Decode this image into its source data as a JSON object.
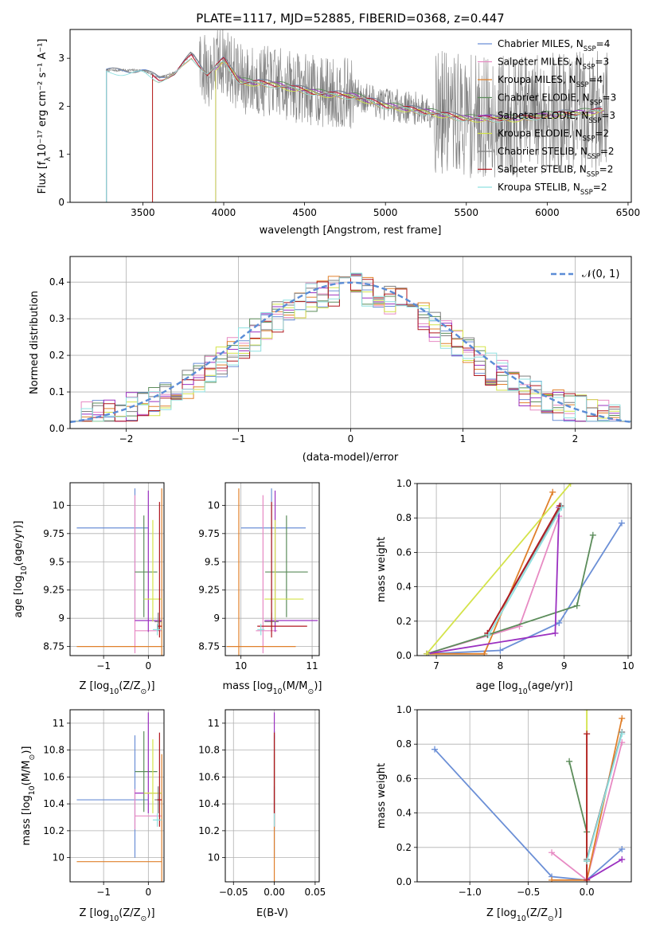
{
  "figure": {
    "title": "PLATE=1117, MJD=52885, FIBERID=0368, z=0.447"
  },
  "models": [
    {
      "name": "Chabrier MILES, N",
      "sub": "SSP",
      "tail": "=4",
      "color": "#6b8fd6"
    },
    {
      "name": "Salpeter MILES, N",
      "sub": "SSP",
      "tail": "=3",
      "color": "#e78ac3"
    },
    {
      "name": "Kroupa MILES, N",
      "sub": "SSP",
      "tail": "=4",
      "color": "#e0802b"
    },
    {
      "name": "Chabrier ELODIE, N",
      "sub": "SSP",
      "tail": "=3",
      "color": "#5b8c5a"
    },
    {
      "name": "Salpeter ELODIE, N",
      "sub": "SSP",
      "tail": "=3",
      "color": "#9b30c0"
    },
    {
      "name": "Kroupa ELODIE, N",
      "sub": "SSP",
      "tail": "=2",
      "color": "#d4e34a"
    },
    {
      "name": "Chabrier STELIB, N",
      "sub": "SSP",
      "tail": "=2",
      "color": "#7f7f7f"
    },
    {
      "name": "Salpeter STELIB, N",
      "sub": "SSP",
      "tail": "=2",
      "color": "#b0171f"
    },
    {
      "name": "Kroupa STELIB, N",
      "sub": "SSP",
      "tail": "=2",
      "color": "#8fe0e0"
    }
  ],
  "chart_data": [
    {
      "id": "spectrum",
      "type": "line",
      "xlabel": "wavelength [Angstrom, rest frame]",
      "ylabel_pre": "Flux [f",
      "ylabel_sub": "λ",
      "ylabel_post": "10⁻¹⁷ erg cm⁻² s⁻¹ A⁻¹]",
      "xlim": [
        3050,
        6520
      ],
      "ylim": [
        0,
        3.6
      ],
      "xticks": [
        3500,
        4000,
        4500,
        5000,
        5500,
        6000,
        6500
      ],
      "yticks": [
        0,
        1,
        2,
        3
      ],
      "legend_position": "top-right",
      "model_starts": [
        3275,
        3560,
        3560,
        3950,
        3950,
        3950,
        3275,
        3560,
        3275
      ],
      "continuum": [
        [
          3300,
          2.75
        ],
        [
          3500,
          2.75
        ],
        [
          3600,
          2.6
        ],
        [
          3700,
          2.7
        ],
        [
          3800,
          3.1
        ],
        [
          3900,
          2.7
        ],
        [
          4000,
          3.0
        ],
        [
          4100,
          2.55
        ],
        [
          4300,
          2.5
        ],
        [
          4600,
          2.3
        ],
        [
          4800,
          2.25
        ],
        [
          5000,
          2.05
        ],
        [
          5200,
          1.95
        ],
        [
          5500,
          1.78
        ],
        [
          5800,
          1.78
        ],
        [
          6000,
          1.85
        ],
        [
          6200,
          1.9
        ],
        [
          6350,
          1.95
        ]
      ]
    },
    {
      "id": "residuals",
      "type": "histogram",
      "xlabel": "(data-model)/error",
      "ylabel": "Normed distribution",
      "xlim": [
        -2.5,
        2.5
      ],
      "ylim": [
        0,
        0.47
      ],
      "xticks": [
        -2,
        -1,
        0,
        1,
        2
      ],
      "yticks": [
        0.0,
        0.1,
        0.2,
        0.3,
        0.4
      ],
      "reference": "𝒩(0, 1)",
      "bin_width": 0.1,
      "legend_position": "top-right"
    },
    {
      "id": "age-vs-Z",
      "type": "errorbar",
      "xlabel_pre": "Z [log",
      "xlabel_sub": "10",
      "xlabel_post": "(Z/Z",
      "xlabel_sub2": "⊙",
      "xlabel_end": ")]",
      "ylabel_pre": "age  [log",
      "ylabel_sub": "10",
      "ylabel_post": "(age/yr)]",
      "xlim": [
        -1.75,
        0.35
      ],
      "ylim": [
        8.67,
        10.2
      ],
      "xticks": [
        -1,
        0
      ],
      "yticks": [
        8.75,
        9.0,
        9.25,
        9.5,
        9.75,
        10.0
      ],
      "points": [
        {
          "x": -0.3,
          "xe": [
            1.3,
            0.3
          ],
          "y": 9.8,
          "ye": [
            0.8,
            0.35
          ]
        },
        {
          "x": -0.3,
          "xe": [
            0.0,
            0.6
          ],
          "y": 8.89,
          "ye": [
            0.2,
            1.2
          ]
        },
        {
          "x": 0.3,
          "xe": [
            1.9,
            0.0
          ],
          "y": 8.75,
          "ye": [
            0.1,
            1.4
          ]
        },
        {
          "x": -0.1,
          "xe": [
            0.2,
            0.3
          ],
          "y": 9.41,
          "ye": [
            0.4,
            0.5
          ]
        },
        {
          "x": 0.0,
          "xe": [
            0.3,
            0.3
          ],
          "y": 8.98,
          "ye": [
            0.1,
            1.15
          ]
        },
        {
          "x": 0.1,
          "xe": [
            0.2,
            0.2
          ],
          "y": 9.17,
          "ye": [
            0.2,
            0.7
          ]
        },
        {
          "x": 0.22,
          "xe": [
            0.08,
            0.08
          ],
          "y": 8.97,
          "ye": [
            0.08,
            0.08
          ]
        },
        {
          "x": 0.25,
          "xe": [
            0.05,
            0.05
          ],
          "y": 8.93,
          "ye": [
            0.1,
            1.1
          ]
        },
        {
          "x": 0.2,
          "xe": [
            0.1,
            0.1
          ],
          "y": 8.9,
          "ye": [
            0.05,
            0.05
          ]
        }
      ]
    },
    {
      "id": "age-vs-mass",
      "type": "errorbar",
      "xlabel_pre": "mass [log",
      "xlabel_sub": "10",
      "xlabel_post": "(M/M",
      "xlabel_sub2": "⊙",
      "xlabel_end": ")]",
      "xlim": [
        9.78,
        11.1
      ],
      "ylim": [
        8.67,
        10.2
      ],
      "xticks": [
        10,
        11
      ],
      "yticks": [
        8.75,
        9.0,
        9.25,
        9.5,
        9.75,
        10.0
      ],
      "points": [
        {
          "x": 10.43,
          "xe": [
            0.43,
            0.48
          ],
          "y": 9.8,
          "ye": [
            0.8,
            0.35
          ]
        },
        {
          "x": 10.31,
          "xe": [
            0.1,
            0.2
          ],
          "y": 8.89,
          "ye": [
            0.2,
            1.2
          ]
        },
        {
          "x": 9.97,
          "xe": [
            0.17,
            0.8
          ],
          "y": 8.75,
          "ye": [
            0.1,
            1.4
          ]
        },
        {
          "x": 10.64,
          "xe": [
            0.3,
            0.3
          ],
          "y": 9.41,
          "ye": [
            0.4,
            0.5
          ]
        },
        {
          "x": 10.48,
          "xe": [
            0.15,
            0.6
          ],
          "y": 8.98,
          "ye": [
            0.1,
            1.15
          ]
        },
        {
          "x": 10.48,
          "xe": [
            0.15,
            0.4
          ],
          "y": 9.17,
          "ye": [
            0.2,
            0.7
          ]
        },
        {
          "x": 10.43,
          "xe": [
            0.1,
            0.1
          ],
          "y": 8.97,
          "ye": [
            0.08,
            0.08
          ]
        },
        {
          "x": 10.43,
          "xe": [
            0.2,
            0.5
          ],
          "y": 8.93,
          "ye": [
            0.1,
            1.1
          ]
        },
        {
          "x": 10.28,
          "xe": [
            0.05,
            0.05
          ],
          "y": 8.9,
          "ye": [
            0.05,
            0.05
          ]
        }
      ]
    },
    {
      "id": "massweight-vs-age",
      "type": "line",
      "xlabel_pre": "age  [log",
      "xlabel_sub": "10",
      "xlabel_post": "(age/yr)]",
      "ylabel": "mass weight",
      "xlim": [
        6.7,
        10.05
      ],
      "ylim": [
        0,
        1.0
      ],
      "xticks": [
        7,
        8,
        9,
        10
      ],
      "yticks": [
        0.0,
        0.2,
        0.4,
        0.6,
        0.8,
        1.0
      ],
      "series": [
        {
          "x": [
            6.88,
            8.0,
            8.92,
            9.9
          ],
          "y": [
            0.01,
            0.03,
            0.19,
            0.77
          ]
        },
        {
          "x": [
            6.85,
            8.3,
            8.92
          ],
          "y": [
            0.01,
            0.17,
            0.81
          ]
        },
        {
          "x": [
            6.85,
            7.75,
            8.82
          ],
          "y": [
            0.01,
            0.01,
            0.95
          ]
        },
        {
          "x": [
            6.85,
            7.8,
            9.2,
            9.45
          ],
          "y": [
            0.01,
            0.12,
            0.29,
            0.7
          ]
        },
        {
          "x": [
            6.85,
            8.86,
            8.92
          ],
          "y": [
            0.01,
            0.13,
            0.86
          ]
        },
        {
          "x": [
            6.85,
            9.1
          ],
          "y": [
            0.01,
            1.0
          ]
        },
        {
          "x": [
            7.8,
            8.95
          ],
          "y": [
            0.13,
            0.87
          ]
        },
        {
          "x": [
            7.8,
            8.93
          ],
          "y": [
            0.13,
            0.87
          ]
        },
        {
          "x": [
            7.82,
            8.96
          ],
          "y": [
            0.12,
            0.86
          ]
        }
      ]
    },
    {
      "id": "mass-vs-Z",
      "type": "errorbar",
      "xlabel_pre": "Z [log",
      "xlabel_sub": "10",
      "xlabel_post": "(Z/Z",
      "xlabel_sub2": "⊙",
      "xlabel_end": ")]",
      "ylabel_pre": "mass [log",
      "ylabel_sub": "10",
      "ylabel_post": "(M/M",
      "ylabel_sub2": "⊙",
      "ylabel_end": ")]",
      "xlim": [
        -1.75,
        0.35
      ],
      "ylim": [
        9.82,
        11.1
      ],
      "xticks": [
        -1,
        0
      ],
      "yticks": [
        10.0,
        10.2,
        10.4,
        10.6,
        10.8,
        11.0
      ],
      "points": [
        {
          "x": -0.3,
          "xe": [
            1.3,
            0.3
          ],
          "y": 10.43,
          "ye": [
            0.43,
            0.48
          ]
        },
        {
          "x": -0.3,
          "xe": [
            0.0,
            0.6
          ],
          "y": 10.31,
          "ye": [
            0.1,
            0.2
          ]
        },
        {
          "x": 0.3,
          "xe": [
            1.9,
            0.0
          ],
          "y": 9.97,
          "ye": [
            0.17,
            0.8
          ]
        },
        {
          "x": -0.1,
          "xe": [
            0.2,
            0.3
          ],
          "y": 10.64,
          "ye": [
            0.3,
            0.3
          ]
        },
        {
          "x": 0.0,
          "xe": [
            0.3,
            0.3
          ],
          "y": 10.48,
          "ye": [
            0.15,
            0.6
          ]
        },
        {
          "x": 0.1,
          "xe": [
            0.2,
            0.2
          ],
          "y": 10.48,
          "ye": [
            0.15,
            0.4
          ]
        },
        {
          "x": 0.22,
          "xe": [
            0.08,
            0.08
          ],
          "y": 10.43,
          "ye": [
            0.1,
            0.1
          ]
        },
        {
          "x": 0.25,
          "xe": [
            0.05,
            0.05
          ],
          "y": 10.43,
          "ye": [
            0.2,
            0.5
          ]
        },
        {
          "x": 0.2,
          "xe": [
            0.1,
            0.1
          ],
          "y": 10.28,
          "ye": [
            0.05,
            0.05
          ]
        }
      ]
    },
    {
      "id": "mass-vs-ebv",
      "type": "errorbar",
      "xlabel": "E(B-V)",
      "xlim": [
        -0.06,
        0.055
      ],
      "ylim": [
        9.82,
        11.1
      ],
      "xticks": [
        -0.05,
        0.0,
        0.05
      ],
      "xticklabels": [
        "−0.05",
        "0.00",
        "0.05"
      ],
      "yticks": [
        10.0,
        10.2,
        10.4,
        10.6,
        10.8,
        11.0
      ],
      "points": [
        {
          "x": 0.0,
          "xe": [
            0,
            0
          ],
          "y": 10.43,
          "ye": [
            0.43,
            0.48
          ]
        },
        {
          "x": 0.0,
          "xe": [
            0,
            0
          ],
          "y": 10.31,
          "ye": [
            0.1,
            0.2
          ]
        },
        {
          "x": 0.0,
          "xe": [
            0,
            0
          ],
          "y": 9.97,
          "ye": [
            0.17,
            0.8
          ]
        },
        {
          "x": 0.0,
          "xe": [
            0,
            0
          ],
          "y": 10.64,
          "ye": [
            0.3,
            0.3
          ]
        },
        {
          "x": 0.0,
          "xe": [
            0,
            0
          ],
          "y": 10.48,
          "ye": [
            0.15,
            0.6
          ]
        },
        {
          "x": 0.0,
          "xe": [
            0,
            0
          ],
          "y": 10.48,
          "ye": [
            0.15,
            0.4
          ]
        },
        {
          "x": 0.0,
          "xe": [
            0,
            0
          ],
          "y": 10.43,
          "ye": [
            0.1,
            0.1
          ]
        },
        {
          "x": 0.0,
          "xe": [
            0,
            0
          ],
          "y": 10.43,
          "ye": [
            0.2,
            0.5
          ]
        },
        {
          "x": 0.0,
          "xe": [
            0,
            0
          ],
          "y": 10.28,
          "ye": [
            0.05,
            0.05
          ]
        }
      ]
    },
    {
      "id": "massweight-vs-Z",
      "type": "line",
      "xlabel_pre": "Z [log",
      "xlabel_sub": "10",
      "xlabel_post": "(Z/Z",
      "xlabel_sub2": "⊙",
      "xlabel_end": ")]",
      "ylabel": "mass weight",
      "xlim": [
        -1.45,
        0.38
      ],
      "ylim": [
        0,
        1.0
      ],
      "xticks": [
        -1.0,
        -0.5,
        0.0
      ],
      "xticklabels": [
        "−1.0",
        "−0.5",
        "0.0"
      ],
      "yticks": [
        0.0,
        0.2,
        0.4,
        0.6,
        0.8,
        1.0
      ],
      "series": [
        {
          "x": [
            -1.3,
            -0.3,
            0.0,
            0.3
          ],
          "y": [
            0.77,
            0.03,
            0.01,
            0.19
          ]
        },
        {
          "x": [
            -0.3,
            0.0,
            0.3
          ],
          "y": [
            0.17,
            0.01,
            0.81
          ]
        },
        {
          "x": [
            -0.3,
            0.0,
            0.3
          ],
          "y": [
            0.01,
            0.01,
            0.95
          ]
        },
        {
          "x": [
            -0.15,
            0.0,
            0.0
          ],
          "y": [
            0.7,
            0.29,
            0.12
          ]
        },
        {
          "x": [
            0.0,
            0.3
          ],
          "y": [
            0.01,
            0.13
          ]
        },
        {
          "x": [
            0.0,
            0.0
          ],
          "y": [
            0.01,
            1.0
          ]
        },
        {
          "x": [
            0.0,
            0.3
          ],
          "y": [
            0.13,
            0.87
          ]
        },
        {
          "x": [
            0.0,
            0.0
          ],
          "y": [
            0.01,
            0.86
          ]
        },
        {
          "x": [
            0.0,
            0.3
          ],
          "y": [
            0.12,
            0.86
          ]
        }
      ]
    }
  ]
}
